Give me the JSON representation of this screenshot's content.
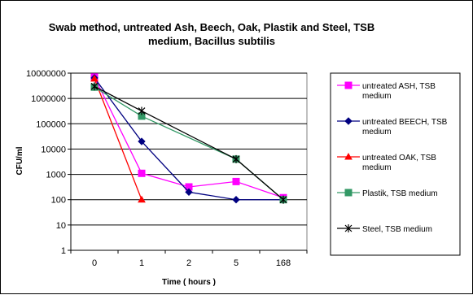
{
  "chart_data": {
    "type": "line",
    "title_lines": [
      "Swab method, untreated Ash, Beech, Oak, Plastik and Steel, TSB",
      "medium, Bacillus subtilis"
    ],
    "xlabel": "Time ( hours )",
    "ylabel": "CFU/ml",
    "categories": [
      "0",
      "1",
      "2",
      "5",
      "168"
    ],
    "y_scale": "log",
    "ylim": [
      1,
      10000000
    ],
    "y_ticks": [
      "1",
      "10",
      "100",
      "1000",
      "10000",
      "100000",
      "1000000",
      "10000000"
    ],
    "grid": "horizontal",
    "legend_position": "right",
    "series": [
      {
        "name_lines": [
          "untreated ASH, TSB",
          "medium"
        ],
        "color": "#ff00ff",
        "marker": "square",
        "values": [
          7000000,
          1100,
          320,
          520,
          120
        ]
      },
      {
        "name_lines": [
          "untreated BEECH, TSB",
          "medium"
        ],
        "color": "#000080",
        "marker": "diamond",
        "values": [
          6500000,
          20000,
          200,
          100,
          100
        ]
      },
      {
        "name_lines": [
          "untreated OAK, TSB",
          "medium"
        ],
        "color": "#ff0000",
        "marker": "triangle",
        "values": [
          6000000,
          100,
          null,
          null,
          null
        ]
      },
      {
        "name_lines": [
          "Plastik, TSB medium"
        ],
        "color": "#339966",
        "marker": "square",
        "values": [
          2800000,
          200000,
          null,
          4000,
          100
        ]
      },
      {
        "name_lines": [
          "Steel, TSB medium"
        ],
        "color": "#000000",
        "marker": "star",
        "values": [
          3000000,
          320000,
          null,
          4000,
          100
        ]
      }
    ]
  }
}
